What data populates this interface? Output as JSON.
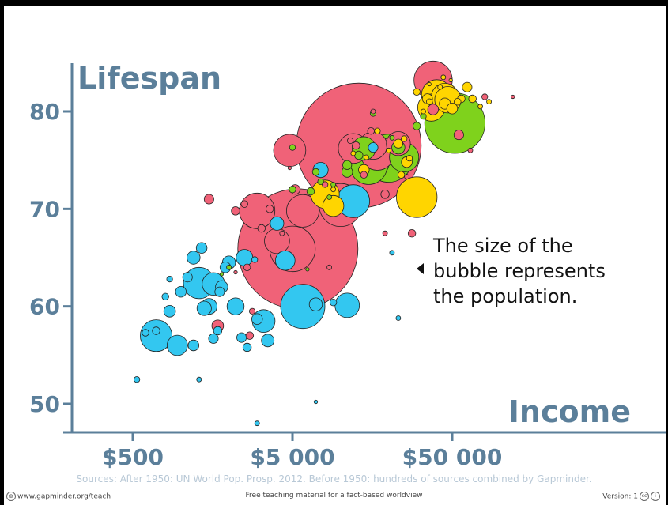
{
  "chart_data": {
    "type": "scatter",
    "title": "",
    "xlabel": "Income",
    "ylabel": "Lifespan",
    "x_scale": "log",
    "xlim": [
      200,
      400000
    ],
    "ylim": [
      47,
      86
    ],
    "x_ticks": [
      {
        "value": 500,
        "label": "$500"
      },
      {
        "value": 5000,
        "label": "$5 000"
      },
      {
        "value": 50000,
        "label": "$50 000"
      }
    ],
    "y_ticks": [
      {
        "value": 50,
        "label": "50"
      },
      {
        "value": 60,
        "label": "60"
      },
      {
        "value": 70,
        "label": "70"
      },
      {
        "value": 80,
        "label": "80"
      }
    ],
    "grid": false,
    "legend": null,
    "region_colors": {
      "africa": "#33c7f0",
      "asia": "#f06278",
      "americas": "#7fd21c",
      "europe": "#ffd500"
    },
    "annotation": "The size of the bubble represents the population.",
    "annotation_lines": [
      "The size of the",
      "bubble represents",
      "the population."
    ],
    "points": [
      {
        "x": 13000,
        "y": 76.5,
        "pop": 1350,
        "region": "asia"
      },
      {
        "x": 5400,
        "y": 65.9,
        "pop": 1250,
        "region": "asia"
      },
      {
        "x": 52000,
        "y": 78.8,
        "pop": 315,
        "region": "americas"
      },
      {
        "x": 20000,
        "y": 75.2,
        "pop": 200,
        "region": "americas"
      },
      {
        "x": 5000,
        "y": 65.9,
        "pop": 180,
        "region": "asia"
      },
      {
        "x": 5800,
        "y": 60.0,
        "pop": 170,
        "region": "africa"
      },
      {
        "x": 10000,
        "y": 70.4,
        "pop": 160,
        "region": "asia"
      },
      {
        "x": 15000,
        "y": 75.0,
        "pop": 150,
        "region": "asia"
      },
      {
        "x": 38000,
        "y": 83.2,
        "pop": 127,
        "region": "asia"
      },
      {
        "x": 3000,
        "y": 69.8,
        "pop": 110,
        "region": "asia"
      },
      {
        "x": 40000,
        "y": 81.7,
        "pop": 80,
        "region": "europe"
      },
      {
        "x": 30000,
        "y": 71.2,
        "pop": 143,
        "region": "europe"
      },
      {
        "x": 15000,
        "y": 74.4,
        "pop": 117,
        "region": "americas"
      },
      {
        "x": 17000,
        "y": 75.7,
        "pop": 100,
        "region": "asia"
      },
      {
        "x": 12000,
        "y": 70.8,
        "pop": 94,
        "region": "africa"
      },
      {
        "x": 5800,
        "y": 69.8,
        "pop": 92,
        "region": "asia"
      },
      {
        "x": 4800,
        "y": 76.0,
        "pop": 90,
        "region": "asia"
      },
      {
        "x": 700,
        "y": 57.0,
        "pop": 87,
        "region": "africa"
      },
      {
        "x": 1300,
        "y": 62.4,
        "pop": 85,
        "region": "africa"
      },
      {
        "x": 12000,
        "y": 76.2,
        "pop": 77,
        "region": "asia"
      },
      {
        "x": 25000,
        "y": 75.3,
        "pop": 75,
        "region": "americas"
      },
      {
        "x": 16000,
        "y": 76.5,
        "pop": 66,
        "region": "asia"
      },
      {
        "x": 37000,
        "y": 80.4,
        "pop": 64,
        "region": "europe"
      },
      {
        "x": 45000,
        "y": 81.5,
        "pop": 63,
        "region": "europe"
      },
      {
        "x": 47000,
        "y": 81.2,
        "pop": 60,
        "region": "europe"
      },
      {
        "x": 8000,
        "y": 71.5,
        "pop": 70,
        "region": "europe"
      },
      {
        "x": 4000,
        "y": 66.7,
        "pop": 55,
        "region": "asia"
      },
      {
        "x": 23000,
        "y": 76.7,
        "pop": 50,
        "region": "asia"
      },
      {
        "x": 11000,
        "y": 60.1,
        "pop": 52,
        "region": "africa"
      },
      {
        "x": 3300,
        "y": 58.5,
        "pop": 45,
        "region": "africa"
      },
      {
        "x": 1600,
        "y": 62.3,
        "pop": 44,
        "region": "africa"
      },
      {
        "x": 950,
        "y": 56.0,
        "pop": 36,
        "region": "africa"
      },
      {
        "x": 14000,
        "y": 76.2,
        "pop": 48,
        "region": "americas"
      },
      {
        "x": 2200,
        "y": 60.0,
        "pop": 25,
        "region": "africa"
      },
      {
        "x": 2000,
        "y": 64.5,
        "pop": 15,
        "region": "africa"
      },
      {
        "x": 7000,
        "y": 60.2,
        "pop": 15,
        "region": "africa"
      },
      {
        "x": 2500,
        "y": 65.0,
        "pop": 24,
        "region": "africa"
      },
      {
        "x": 1000,
        "y": 61.5,
        "pop": 10,
        "region": "africa"
      },
      {
        "x": 850,
        "y": 59.5,
        "pop": 12,
        "region": "africa"
      },
      {
        "x": 1100,
        "y": 63.0,
        "pop": 8,
        "region": "africa"
      },
      {
        "x": 1400,
        "y": 59.8,
        "pop": 18,
        "region": "africa"
      },
      {
        "x": 1500,
        "y": 60.0,
        "pop": 22,
        "region": "africa"
      },
      {
        "x": 1200,
        "y": 65.0,
        "pop": 15,
        "region": "africa"
      },
      {
        "x": 1350,
        "y": 66.0,
        "pop": 10,
        "region": "africa"
      },
      {
        "x": 1800,
        "y": 62.0,
        "pop": 13,
        "region": "africa"
      },
      {
        "x": 1750,
        "y": 61.5,
        "pop": 8,
        "region": "africa"
      },
      {
        "x": 1900,
        "y": 64.0,
        "pop": 10,
        "region": "africa"
      },
      {
        "x": 3000,
        "y": 58.7,
        "pop": 10,
        "region": "africa"
      },
      {
        "x": 2400,
        "y": 56.8,
        "pop": 8,
        "region": "africa"
      },
      {
        "x": 3500,
        "y": 56.5,
        "pop": 14,
        "region": "africa"
      },
      {
        "x": 1200,
        "y": 56.0,
        "pop": 10,
        "region": "africa"
      },
      {
        "x": 1600,
        "y": 56.7,
        "pop": 8,
        "region": "africa"
      },
      {
        "x": 1700,
        "y": 57.5,
        "pop": 6,
        "region": "africa"
      },
      {
        "x": 700,
        "y": 57.5,
        "pop": 5,
        "region": "africa"
      },
      {
        "x": 600,
        "y": 57.3,
        "pop": 4,
        "region": "africa"
      },
      {
        "x": 2600,
        "y": 55.8,
        "pop": 6,
        "region": "africa"
      },
      {
        "x": 800,
        "y": 61.0,
        "pop": 4,
        "region": "africa"
      },
      {
        "x": 850,
        "y": 62.8,
        "pop": 3,
        "region": "africa"
      },
      {
        "x": 530,
        "y": 52.5,
        "pop": 3,
        "region": "africa"
      },
      {
        "x": 1300,
        "y": 52.5,
        "pop": 2,
        "region": "africa"
      },
      {
        "x": 3000,
        "y": 48.0,
        "pop": 2,
        "region": "africa"
      },
      {
        "x": 7000,
        "y": 50.2,
        "pop": 1,
        "region": "africa"
      },
      {
        "x": 2900,
        "y": 64.8,
        "pop": 3,
        "region": "africa"
      },
      {
        "x": 4500,
        "y": 64.7,
        "pop": 33,
        "region": "africa"
      },
      {
        "x": 4000,
        "y": 68.5,
        "pop": 16,
        "region": "africa"
      },
      {
        "x": 7500,
        "y": 74.0,
        "pop": 20,
        "region": "africa"
      },
      {
        "x": 16000,
        "y": 76.3,
        "pop": 8,
        "region": "africa"
      },
      {
        "x": 9000,
        "y": 60.4,
        "pop": 4,
        "region": "africa"
      },
      {
        "x": 23000,
        "y": 58.8,
        "pop": 2,
        "region": "africa"
      },
      {
        "x": 21000,
        "y": 65.5,
        "pop": 2,
        "region": "africa"
      },
      {
        "x": 1500,
        "y": 71.0,
        "pop": 8,
        "region": "asia"
      },
      {
        "x": 1700,
        "y": 58.0,
        "pop": 12,
        "region": "asia"
      },
      {
        "x": 2700,
        "y": 57.0,
        "pop": 5,
        "region": "asia"
      },
      {
        "x": 2200,
        "y": 69.8,
        "pop": 6,
        "region": "asia"
      },
      {
        "x": 2500,
        "y": 70.5,
        "pop": 4,
        "region": "asia"
      },
      {
        "x": 3600,
        "y": 70.0,
        "pop": 5,
        "region": "asia"
      },
      {
        "x": 2600,
        "y": 64.0,
        "pop": 4,
        "region": "asia"
      },
      {
        "x": 2800,
        "y": 59.5,
        "pop": 3,
        "region": "asia"
      },
      {
        "x": 3200,
        "y": 68.0,
        "pop": 5,
        "region": "asia"
      },
      {
        "x": 5200,
        "y": 72.0,
        "pop": 8,
        "region": "asia"
      },
      {
        "x": 8500,
        "y": 64.0,
        "pop": 2,
        "region": "asia"
      },
      {
        "x": 19000,
        "y": 67.5,
        "pop": 2,
        "region": "asia"
      },
      {
        "x": 19000,
        "y": 71.5,
        "pop": 6,
        "region": "asia"
      },
      {
        "x": 14000,
        "y": 73.5,
        "pop": 4,
        "region": "asia"
      },
      {
        "x": 28000,
        "y": 67.5,
        "pop": 5,
        "region": "asia"
      },
      {
        "x": 38000,
        "y": 80.2,
        "pop": 10,
        "region": "asia"
      },
      {
        "x": 55000,
        "y": 77.6,
        "pop": 8,
        "region": "asia"
      },
      {
        "x": 65000,
        "y": 76.0,
        "pop": 2,
        "region": "asia"
      },
      {
        "x": 80000,
        "y": 81.5,
        "pop": 3,
        "region": "asia"
      },
      {
        "x": 26000,
        "y": 73.3,
        "pop": 2,
        "region": "asia"
      },
      {
        "x": 4300,
        "y": 67.5,
        "pop": 2,
        "region": "asia"
      },
      {
        "x": 15500,
        "y": 78.0,
        "pop": 4,
        "region": "asia"
      },
      {
        "x": 16000,
        "y": 80.0,
        "pop": 2,
        "region": "asia"
      },
      {
        "x": 2200,
        "y": 63.5,
        "pop": 1,
        "region": "asia"
      },
      {
        "x": 4800,
        "y": 74.2,
        "pop": 1,
        "region": "asia"
      },
      {
        "x": 120000,
        "y": 81.5,
        "pop": 1,
        "region": "asia"
      },
      {
        "x": 11500,
        "y": 77.0,
        "pop": 3,
        "region": "asia"
      },
      {
        "x": 12500,
        "y": 76.5,
        "pop": 5,
        "region": "asia"
      },
      {
        "x": 8000,
        "y": 72.5,
        "pop": 3,
        "region": "asia"
      },
      {
        "x": 23000,
        "y": 76.3,
        "pop": 15,
        "region": "americas"
      },
      {
        "x": 11000,
        "y": 73.8,
        "pop": 10,
        "region": "americas"
      },
      {
        "x": 11000,
        "y": 74.5,
        "pop": 7,
        "region": "americas"
      },
      {
        "x": 7000,
        "y": 73.8,
        "pop": 4,
        "region": "americas"
      },
      {
        "x": 6500,
        "y": 71.8,
        "pop": 5,
        "region": "americas"
      },
      {
        "x": 5000,
        "y": 72.0,
        "pop": 4,
        "region": "americas"
      },
      {
        "x": 5000,
        "y": 76.3,
        "pop": 3,
        "region": "americas"
      },
      {
        "x": 2000,
        "y": 64.0,
        "pop": 2,
        "region": "americas"
      },
      {
        "x": 1800,
        "y": 63.3,
        "pop": 1,
        "region": "americas"
      },
      {
        "x": 30000,
        "y": 78.5,
        "pop": 5,
        "region": "americas"
      },
      {
        "x": 33000,
        "y": 79.5,
        "pop": 3,
        "region": "americas"
      },
      {
        "x": 16000,
        "y": 79.8,
        "pop": 3,
        "region": "americas"
      },
      {
        "x": 7500,
        "y": 72.8,
        "pop": 3,
        "region": "americas"
      },
      {
        "x": 9000,
        "y": 72.5,
        "pop": 2,
        "region": "americas"
      },
      {
        "x": 8500,
        "y": 71.2,
        "pop": 2,
        "region": "americas"
      },
      {
        "x": 21000,
        "y": 77.3,
        "pop": 2,
        "region": "americas"
      },
      {
        "x": 13000,
        "y": 75.5,
        "pop": 6,
        "region": "americas"
      },
      {
        "x": 6200,
        "y": 63.8,
        "pop": 1,
        "region": "americas"
      },
      {
        "x": 9000,
        "y": 70.3,
        "pop": 38,
        "region": "europe"
      },
      {
        "x": 26000,
        "y": 74.8,
        "pop": 10,
        "region": "europe"
      },
      {
        "x": 14000,
        "y": 74.0,
        "pop": 10,
        "region": "europe"
      },
      {
        "x": 27000,
        "y": 75.2,
        "pop": 3,
        "region": "europe"
      },
      {
        "x": 25000,
        "y": 77.2,
        "pop": 3,
        "region": "europe"
      },
      {
        "x": 33000,
        "y": 80.0,
        "pop": 2,
        "region": "europe"
      },
      {
        "x": 36000,
        "y": 81.0,
        "pop": 3,
        "region": "europe"
      },
      {
        "x": 44000,
        "y": 83.5,
        "pop": 2,
        "region": "europe"
      },
      {
        "x": 45000,
        "y": 80.8,
        "pop": 11,
        "region": "europe"
      },
      {
        "x": 50000,
        "y": 80.3,
        "pop": 10,
        "region": "europe"
      },
      {
        "x": 57000,
        "y": 81.3,
        "pop": 5,
        "region": "europe"
      },
      {
        "x": 62000,
        "y": 82.5,
        "pop": 8,
        "region": "europe"
      },
      {
        "x": 67000,
        "y": 81.3,
        "pop": 5,
        "region": "europe"
      },
      {
        "x": 75000,
        "y": 80.5,
        "pop": 2,
        "region": "europe"
      },
      {
        "x": 30000,
        "y": 82.0,
        "pop": 4,
        "region": "europe"
      },
      {
        "x": 35000,
        "y": 81.3,
        "pop": 9,
        "region": "europe"
      },
      {
        "x": 54000,
        "y": 81.0,
        "pop": 4,
        "region": "europe"
      },
      {
        "x": 24000,
        "y": 73.5,
        "pop": 4,
        "region": "europe"
      },
      {
        "x": 23000,
        "y": 76.7,
        "pop": 7,
        "region": "europe"
      },
      {
        "x": 42000,
        "y": 82.5,
        "pop": 2,
        "region": "europe"
      },
      {
        "x": 85000,
        "y": 81.0,
        "pop": 2,
        "region": "europe"
      },
      {
        "x": 17000,
        "y": 78.0,
        "pop": 3,
        "region": "europe"
      },
      {
        "x": 20000,
        "y": 76.0,
        "pop": 2,
        "region": "europe"
      },
      {
        "x": 14500,
        "y": 75.3,
        "pop": 2,
        "region": "europe"
      },
      {
        "x": 9000,
        "y": 72.0,
        "pop": 2,
        "region": "europe"
      },
      {
        "x": 12000,
        "y": 75.7,
        "pop": 2,
        "region": "europe"
      },
      {
        "x": 36000,
        "y": 82.8,
        "pop": 1,
        "region": "europe"
      },
      {
        "x": 49000,
        "y": 83.2,
        "pop": 1,
        "region": "europe"
      }
    ]
  },
  "sources": "Sources: After 1950: UN World Pop. Prosp. 2012. Before 1950: hundreds of sources combined by Gapminder.",
  "footer": {
    "left": "www.gapminder.org/teach",
    "center": "Free teaching material for a fact-based worldview",
    "right": "Version: 1"
  }
}
